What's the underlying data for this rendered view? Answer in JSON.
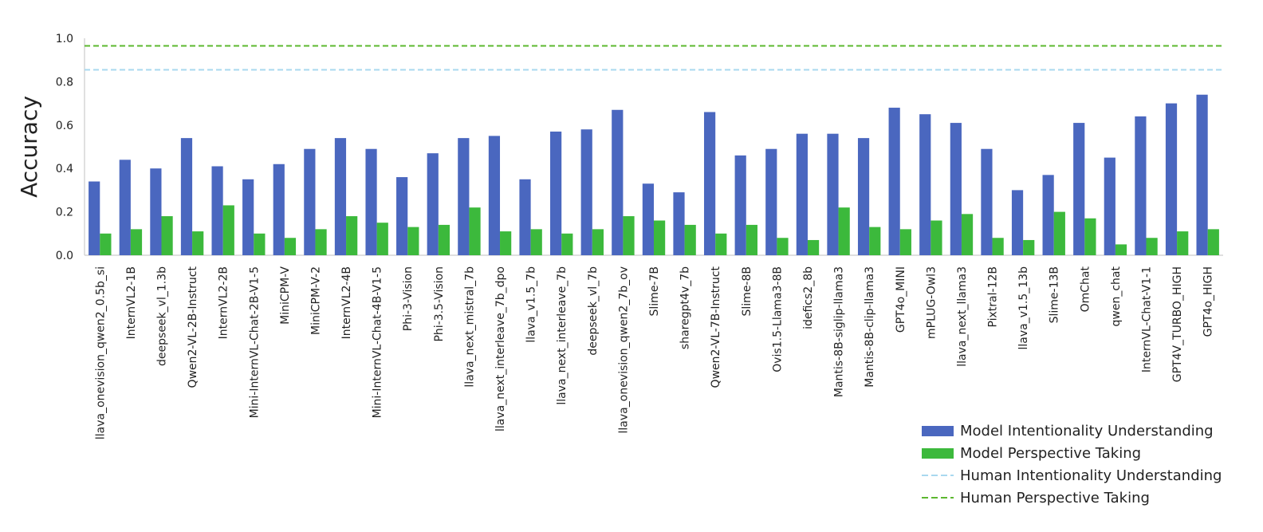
{
  "chart_data": {
    "type": "bar",
    "ylabel": "Accuracy",
    "ylim": [
      0,
      1.0
    ],
    "yticks": [
      "0.0",
      "0.2",
      "0.4",
      "0.6",
      "0.8",
      "1.0"
    ],
    "grid": false,
    "legend_position": "bottom-right",
    "categories": [
      "llava_onevision_qwen2_0.5b_si",
      "InternVL2-1B",
      "deepseek_vl_1.3b",
      "Qwen2-VL-2B-Instruct",
      "InternVL2-2B",
      "Mini-InternVL-Chat-2B-V1-5",
      "MiniCPM-V",
      "MiniCPM-V-2",
      "InternVL2-4B",
      "Mini-InternVL-Chat-4B-V1-5",
      "Phi-3-Vision",
      "Phi-3.5-Vision",
      "llava_next_mistral_7b",
      "llava_next_interleave_7b_dpo",
      "llava_v1.5_7b",
      "llava_next_interleave_7b",
      "deepseek_vl_7b",
      "llava_onevision_qwen2_7b_ov",
      "Slime-7B",
      "sharegpt4v_7b",
      "Qwen2-VL-7B-Instruct",
      "Slime-8B",
      "Ovis1.5-Llama3-8B",
      "idefics2_8b",
      "Mantis-8B-siglip-llama3",
      "Mantis-8B-clip-llama3",
      "GPT4o_MINI",
      "mPLUG-Owl3",
      "llava_next_llama3",
      "Pixtral-12B",
      "llava_v1.5_13b",
      "Slime-13B",
      "OmChat",
      "qwen_chat",
      "InternVL-Chat-V1-1",
      "GPT4V_TURBO_HIGH",
      "GPT4o_HIGH"
    ],
    "series": [
      {
        "name": "Model Intentionality Understanding",
        "color": "#4a67bf",
        "values": [
          0.34,
          0.44,
          0.4,
          0.54,
          0.41,
          0.35,
          0.42,
          0.49,
          0.54,
          0.49,
          0.36,
          0.47,
          0.54,
          0.55,
          0.35,
          0.57,
          0.58,
          0.67,
          0.33,
          0.29,
          0.66,
          0.46,
          0.49,
          0.56,
          0.56,
          0.54,
          0.68,
          0.65,
          0.61,
          0.49,
          0.3,
          0.37,
          0.61,
          0.45,
          0.64,
          0.7,
          0.74
        ]
      },
      {
        "name": "Model Perspective Taking",
        "color": "#3cb93c",
        "values": [
          0.1,
          0.12,
          0.18,
          0.11,
          0.23,
          0.1,
          0.08,
          0.12,
          0.18,
          0.15,
          0.13,
          0.14,
          0.22,
          0.11,
          0.12,
          0.1,
          0.12,
          0.18,
          0.16,
          0.14,
          0.1,
          0.14,
          0.08,
          0.07,
          0.22,
          0.13,
          0.12,
          0.16,
          0.19,
          0.08,
          0.07,
          0.2,
          0.17,
          0.05,
          0.08,
          0.11,
          0.12
        ]
      }
    ],
    "reference_lines": [
      {
        "name": "Human Intentionality Understanding",
        "value": 0.855,
        "color": "#a9d8ef",
        "style": "dashed"
      },
      {
        "name": "Human Perspective Taking",
        "value": 0.965,
        "color": "#5cb82f",
        "style": "dashed"
      }
    ]
  }
}
